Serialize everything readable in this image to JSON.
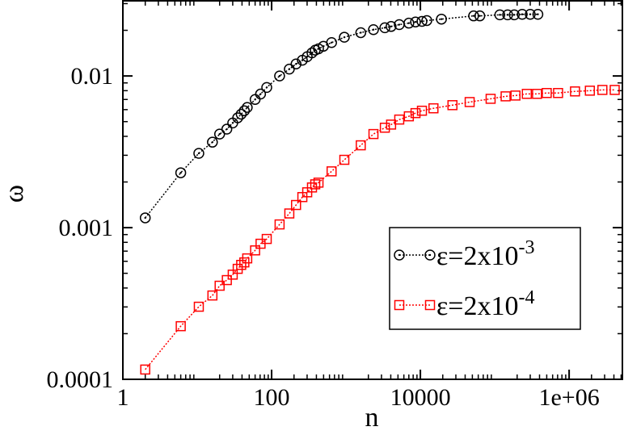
{
  "chart_data": {
    "type": "line",
    "x_label": "n",
    "y_label": "ω",
    "xlog": true,
    "ylog": true,
    "xlim": [
      1,
      5200000
    ],
    "ylim": [
      0.0001,
      0.0313
    ],
    "xticks": [
      1,
      100,
      10000,
      {
        "value": 1000000,
        "label": "1e+06"
      }
    ],
    "yticks": [
      0.0001,
      0.001,
      0.01
    ],
    "legend": "lower right",
    "series": [
      {
        "name": "ε=2x10-3",
        "color": "#000000",
        "marker": "circle",
        "x": [
          2,
          6,
          10.5,
          16,
          20,
          25,
          30,
          35,
          39,
          43,
          47,
          60,
          71,
          86,
          128,
          173,
          213,
          259,
          301,
          349,
          386,
          427,
          497,
          640,
          950,
          1580,
          2340,
          3330,
          4040,
          5200,
          7000,
          8600,
          10500,
          12200,
          19200,
          52000,
          63000,
          117000,
          149000,
          183000,
          234000,
          300000,
          380000
        ],
        "values": [
          0.00116,
          0.0023,
          0.00309,
          0.00366,
          0.00414,
          0.00446,
          0.0049,
          0.0053,
          0.0056,
          0.0059,
          0.0062,
          0.007,
          0.0076,
          0.0084,
          0.01,
          0.0111,
          0.012,
          0.0127,
          0.0134,
          0.0142,
          0.0148,
          0.0151,
          0.0157,
          0.0166,
          0.018,
          0.0193,
          0.0202,
          0.0208,
          0.0212,
          0.0218,
          0.0223,
          0.0227,
          0.0229,
          0.0232,
          0.0237,
          0.0249,
          0.0249,
          0.0253,
          0.0253,
          0.0253,
          0.0255,
          0.0255,
          0.0255
        ]
      },
      {
        "name": "ε=2x10-4",
        "color": "#ff0000",
        "marker": "square",
        "x": [
          2,
          6,
          10.5,
          16,
          20,
          25,
          30,
          35,
          39,
          43,
          47,
          60,
          71,
          86,
          128,
          173,
          213,
          259,
          301,
          349,
          386,
          427,
          640,
          950,
          1580,
          2340,
          3330,
          4040,
          5200,
          7000,
          8600,
          10500,
          15000,
          27000,
          46000,
          88000,
          140000,
          190000,
          270000,
          370000,
          500000,
          710000,
          1200000,
          1900000,
          2800000,
          4100000
        ],
        "values": [
          0.000116,
          0.000224,
          0.000301,
          0.000357,
          0.000414,
          0.000451,
          0.00049,
          0.000535,
          0.000568,
          0.00059,
          0.000627,
          0.000708,
          0.000783,
          0.000842,
          0.00105,
          0.00124,
          0.00141,
          0.00159,
          0.00171,
          0.00184,
          0.00193,
          0.00198,
          0.00235,
          0.0028,
          0.00349,
          0.00414,
          0.00456,
          0.00478,
          0.00516,
          0.00542,
          0.00569,
          0.0059,
          0.00612,
          0.00642,
          0.00673,
          0.00707,
          0.00734,
          0.00743,
          0.00762,
          0.00762,
          0.00772,
          0.00772,
          0.00791,
          0.008,
          0.00809,
          0.00809
        ]
      }
    ]
  }
}
